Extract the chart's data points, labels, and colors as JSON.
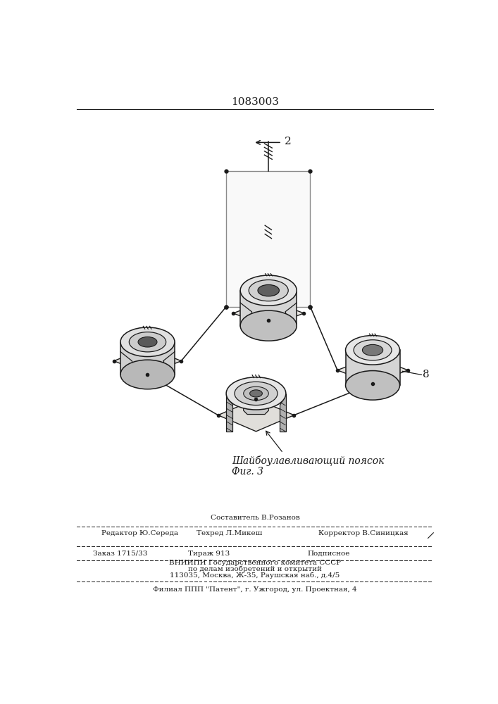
{
  "title_number": "1083003",
  "caption_line1": "Шайбоулавливающий поясок",
  "caption_line2": "Фиг. 3",
  "label_2": "2",
  "label_8": "8",
  "bg_color": "#ffffff",
  "line_color": "#1a1a1a",
  "line_width": 1.1,
  "fig_width": 7.07,
  "fig_height": 10.0,
  "footer_editor": "Редактор Ю.Середа",
  "footer_composer": "Составитель В.Розанов",
  "footer_tech": "Техред Л.Микеш",
  "footer_corrector": "Корректор В.Синицкая",
  "footer_order": "Заказ 1715/33",
  "footer_print": "Тираж 913",
  "footer_subscr": "Подписное",
  "footer_org1": "ВНИИПИ Государственного комитета СССР",
  "footer_org2": "по делам изобретений и открытий",
  "footer_org3": "113035, Москва, Ж-35, Раушская наб., д.4/5",
  "footer_branch": "Филиал ППП \"Патент\", г. Ужгород, ул. Проектная, 4"
}
